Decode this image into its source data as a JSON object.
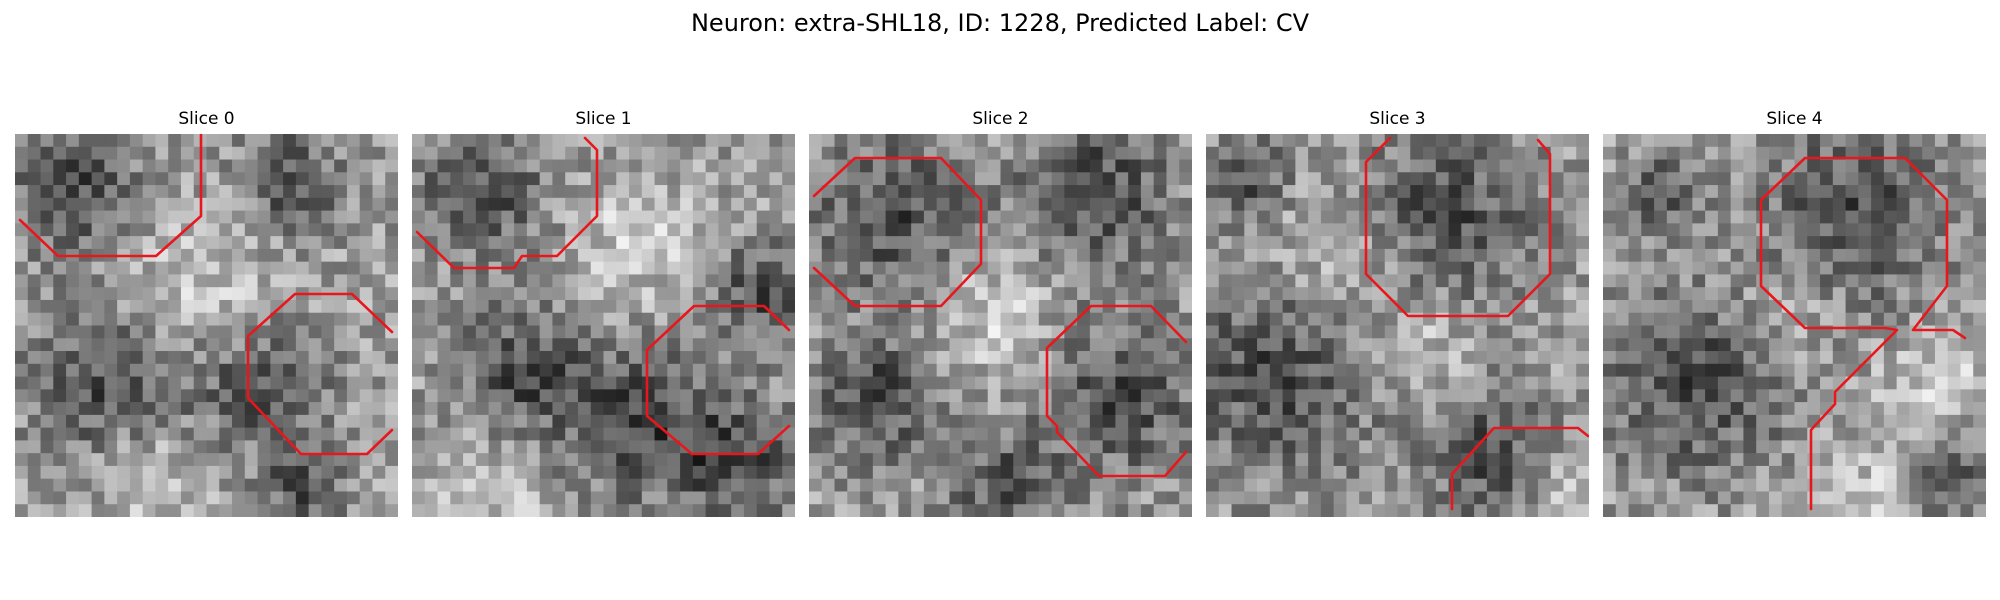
{
  "figure": {
    "title": "Neuron: extra-SHL18, ID: 1228, Predicted Label: CV"
  },
  "colors": {
    "contour": "#e8171d",
    "background": "#ffffff"
  },
  "image_grid": {
    "cells": 30
  },
  "panels": [
    {
      "title": "Slice 0"
    },
    {
      "title": "Slice 1"
    },
    {
      "title": "Slice 2"
    },
    {
      "title": "Slice 3"
    },
    {
      "title": "Slice 4"
    }
  ]
}
